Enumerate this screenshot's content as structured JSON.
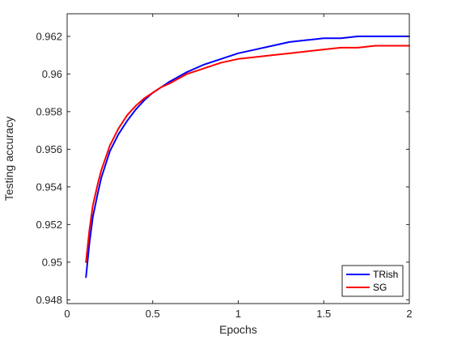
{
  "chart_data": {
    "type": "line",
    "xlabel": "Epochs",
    "ylabel": "Testing accuracy",
    "xlim": [
      0,
      2
    ],
    "ylim": [
      0.9478,
      0.9632
    ],
    "xticks": [
      0,
      0.5,
      1,
      1.5,
      2
    ],
    "xtick_labels": [
      "0",
      "0.5",
      "1",
      "1.5",
      "2"
    ],
    "yticks": [
      0.948,
      0.95,
      0.952,
      0.954,
      0.956,
      0.958,
      0.96,
      0.962
    ],
    "ytick_labels": [
      "0.948",
      "0.95",
      "0.952",
      "0.954",
      "0.956",
      "0.958",
      "0.96",
      "0.962"
    ],
    "grid": false,
    "legend_position": "bottom-right",
    "series": [
      {
        "name": "TRish",
        "color": "#0000ff",
        "x": [
          0.11,
          0.13,
          0.15,
          0.18,
          0.2,
          0.25,
          0.3,
          0.35,
          0.4,
          0.45,
          0.5,
          0.55,
          0.6,
          0.7,
          0.8,
          0.9,
          1.0,
          1.1,
          1.2,
          1.3,
          1.4,
          1.5,
          1.6,
          1.7,
          1.8,
          1.9,
          2.0
        ],
        "y": [
          0.9492,
          0.951,
          0.9524,
          0.9537,
          0.9545,
          0.9559,
          0.9568,
          0.9575,
          0.9581,
          0.9586,
          0.959,
          0.9593,
          0.9596,
          0.9601,
          0.9605,
          0.9608,
          0.9611,
          0.9613,
          0.9615,
          0.9617,
          0.9618,
          0.9619,
          0.9619,
          0.962,
          0.962,
          0.962,
          0.962
        ]
      },
      {
        "name": "SG",
        "color": "#ff0000",
        "x": [
          0.11,
          0.13,
          0.15,
          0.18,
          0.2,
          0.25,
          0.3,
          0.35,
          0.4,
          0.45,
          0.5,
          0.55,
          0.6,
          0.7,
          0.8,
          0.9,
          1.0,
          1.1,
          1.2,
          1.3,
          1.4,
          1.5,
          1.6,
          1.7,
          1.8,
          1.9,
          2.0
        ],
        "y": [
          0.95,
          0.9517,
          0.953,
          0.9542,
          0.9549,
          0.9562,
          0.9571,
          0.9578,
          0.9583,
          0.9587,
          0.959,
          0.9593,
          0.9595,
          0.96,
          0.9603,
          0.9606,
          0.9608,
          0.9609,
          0.961,
          0.9611,
          0.9612,
          0.9613,
          0.9614,
          0.9614,
          0.9615,
          0.9615,
          0.9615
        ]
      }
    ]
  }
}
